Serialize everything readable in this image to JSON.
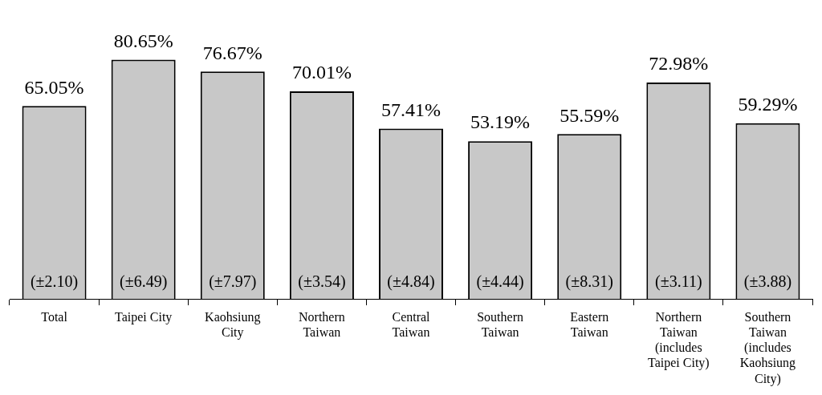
{
  "chart_data": {
    "type": "bar",
    "categories": [
      "Total",
      "Taipei City",
      "Kaohsiung City",
      "Northern Taiwan",
      "Central Taiwan",
      "Southern Taiwan",
      "Eastern Taiwan",
      "Northern Taiwan (includes Taipei City)",
      "Southern Taiwan (includes Kaohsiung City)"
    ],
    "values": [
      65.05,
      80.65,
      76.67,
      70.01,
      57.41,
      53.19,
      55.59,
      72.98,
      59.29
    ],
    "value_labels": [
      "65.05%",
      "80.65%",
      "76.67%",
      "70.01%",
      "57.41%",
      "53.19%",
      "55.59%",
      "72.98%",
      "59.29%"
    ],
    "color": "#c8c8c8",
    "grid": false,
    "legend": false,
    "tick_labels": "x",
    "annotations": [
      "(±2.10)",
      "(±6.49)",
      "(±7.97)",
      "(±3.54)",
      "(±4.84)",
      "(±4.44)",
      "(±8.31)",
      "(±3.11)",
      "(±3.88)"
    ]
  }
}
